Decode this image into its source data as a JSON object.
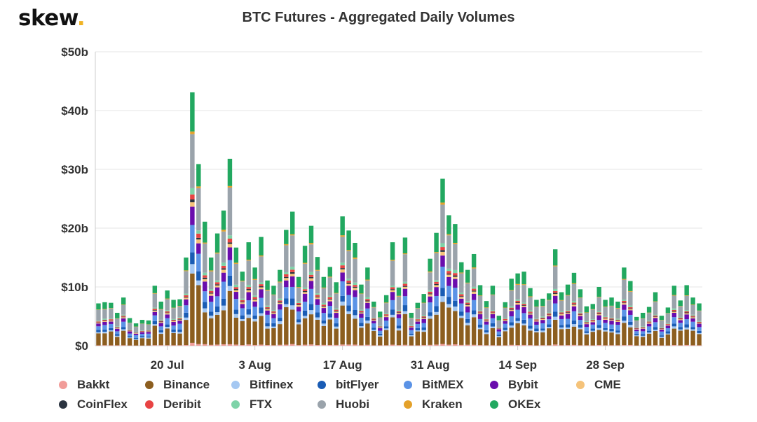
{
  "logo": {
    "text": "skew",
    "dot": "."
  },
  "chart_data": {
    "type": "bar",
    "stacked": true,
    "title": "BTC Futures - Aggregated Daily Volumes",
    "xlabel": "",
    "ylabel": "",
    "ylim": [
      0,
      50
    ],
    "yticks": [
      0,
      10,
      20,
      30,
      40,
      50
    ],
    "ytick_labels": [
      "$0",
      "$10b",
      "$20b",
      "$30b",
      "$40b",
      "$50b"
    ],
    "xtick_labels": [
      {
        "label": "20 Jul",
        "index": 11
      },
      {
        "label": "3 Aug",
        "index": 25
      },
      {
        "label": "17 Aug",
        "index": 39
      },
      {
        "label": "31 Aug",
        "index": 53
      },
      {
        "label": "14 Sep",
        "index": 67
      },
      {
        "label": "28 Sep",
        "index": 81
      }
    ],
    "totals": [
      7.2,
      7.4,
      7.3,
      5.6,
      8.2,
      4.7,
      3.8,
      4.4,
      4.3,
      10.2,
      7.5,
      9.4,
      7.8,
      7.9,
      15.0,
      43.1,
      30.9,
      21.1,
      15.0,
      19.1,
      23.0,
      31.8,
      16.7,
      12.6,
      17.6,
      13.3,
      18.5,
      11.1,
      10.2,
      12.9,
      19.7,
      22.8,
      11.7,
      17.0,
      20.4,
      15.1,
      11.7,
      13.4,
      10.8,
      22.0,
      19.6,
      17.5,
      10.4,
      13.3,
      7.5,
      5.8,
      8.6,
      17.6,
      9.9,
      18.4,
      5.6,
      7.3,
      8.8,
      14.8,
      19.2,
      28.4,
      22.2,
      20.7,
      14.2,
      12.9,
      15.6,
      10.3,
      7.6,
      10.2,
      5.1,
      7.4,
      11.4,
      12.3,
      12.6,
      9.8,
      7.8,
      8.0,
      8.9,
      16.4,
      9.1,
      10.4,
      12.4,
      9.6,
      6.7,
      7.1,
      10.0,
      7.8,
      8.2,
      7.5,
      13.3,
      11.0,
      4.9,
      5.6,
      6.6,
      9.1,
      5.1,
      6.5,
      10.2,
      7.7,
      10.3,
      8.2,
      7.2
    ],
    "series": [
      {
        "name": "Bakkt",
        "color": "#f19c99",
        "share": 0.01
      },
      {
        "name": "Binance",
        "color": "#8c5e1f",
        "share": 0.28
      },
      {
        "name": "Bitfinex",
        "color": "#a5c8f2",
        "share": 0.03
      },
      {
        "name": "bitFlyer",
        "color": "#1a5cb4",
        "share": 0.05
      },
      {
        "name": "BitMEX",
        "color": "#5b93e6",
        "share": 0.1
      },
      {
        "name": "Bybit",
        "color": "#6a0dad",
        "share": 0.07
      },
      {
        "name": "CME",
        "color": "#f5c37a",
        "share": 0.02
      },
      {
        "name": "CoinFlex",
        "color": "#2b3440",
        "share": 0.01
      },
      {
        "name": "Deribit",
        "color": "#e84343",
        "share": 0.02
      },
      {
        "name": "FTX",
        "color": "#7ed3a8",
        "share": 0.02
      },
      {
        "name": "Huobi",
        "color": "#9aa3ab",
        "share": 0.23
      },
      {
        "name": "Kraken",
        "color": "#e4a12a",
        "share": 0.01
      },
      {
        "name": "OKEx",
        "color": "#22a860",
        "share": 0.15
      }
    ],
    "legend_position": "bottom"
  }
}
